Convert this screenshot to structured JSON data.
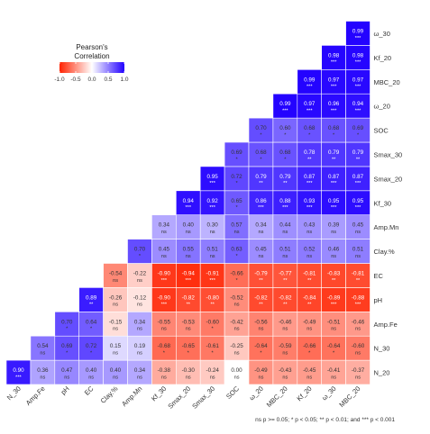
{
  "chart_data": {
    "type": "heatmap",
    "subtype": "lower-triangular correlation matrix",
    "variables": [
      "N_30",
      "Amp.Fe",
      "pH",
      "EC",
      "Clay.%",
      "Amp.Mn",
      "Kf_30",
      "Smax_20",
      "Smax_30",
      "SOC",
      "ω_20",
      "MBC_20",
      "Kf_20",
      "ω_30"
    ],
    "x_labels": [
      "N_30",
      "Amp.Fe",
      "pH",
      "EC",
      "Clay.%",
      "Amp.Mn",
      "Kf_30",
      "Smax_20",
      "Smax_30",
      "SOC",
      "ω_20",
      "MBC_20",
      "Kf_20",
      "ω_30",
      "MBC_20"
    ],
    "y_labels": [
      "N_20",
      "N_30",
      "Amp.Fe",
      "pH",
      "EC",
      "Clay.%",
      "Amp.Mn",
      "Kf_30",
      "Smax_20",
      "Smax_30",
      "SOC",
      "ω_20",
      "MBC_20",
      "Kf_20",
      "ω_30"
    ],
    "rows": [
      {
        "y": "N_20",
        "values": [
          {
            "r": 0.9,
            "sig": "***"
          },
          {
            "r": 0.36,
            "sig": "ns"
          },
          {
            "r": 0.47,
            "sig": "ns"
          },
          {
            "r": 0.4,
            "sig": "ns"
          },
          {
            "r": 0.4,
            "sig": "ns"
          },
          {
            "r": 0.34,
            "sig": "ns"
          },
          {
            "r": -0.38,
            "sig": "ns"
          },
          {
            "r": -0.3,
            "sig": "ns"
          },
          {
            "r": -0.24,
            "sig": "ns"
          },
          {
            "r": 0.0,
            "sig": "ns"
          },
          {
            "r": -0.49,
            "sig": "ns"
          },
          {
            "r": -0.43,
            "sig": "ns"
          },
          {
            "r": -0.45,
            "sig": "ns"
          },
          {
            "r": -0.41,
            "sig": "ns"
          },
          {
            "r": -0.37,
            "sig": "ns"
          }
        ]
      },
      {
        "y": "N_30",
        "values": [
          {
            "r": 0.54,
            "sig": "ns"
          },
          {
            "r": 0.69,
            "sig": "*"
          },
          {
            "r": 0.72,
            "sig": "*"
          },
          {
            "r": 0.15,
            "sig": "ns"
          },
          {
            "r": 0.19,
            "sig": "ns"
          },
          {
            "r": -0.68,
            "sig": "*"
          },
          {
            "r": -0.65,
            "sig": "*"
          },
          {
            "r": -0.61,
            "sig": "*"
          },
          {
            "r": -0.25,
            "sig": "ns"
          },
          {
            "r": -0.64,
            "sig": "*"
          },
          {
            "r": -0.59,
            "sig": "ns"
          },
          {
            "r": -0.66,
            "sig": "*"
          },
          {
            "r": -0.64,
            "sig": "*"
          },
          {
            "r": -0.6,
            "sig": "ns"
          }
        ]
      },
      {
        "y": "Amp.Fe",
        "values": [
          {
            "r": 0.7,
            "sig": "*"
          },
          {
            "r": 0.64,
            "sig": "*"
          },
          {
            "r": -0.15,
            "sig": "ns"
          },
          {
            "r": 0.34,
            "sig": "ns"
          },
          {
            "r": -0.55,
            "sig": "ns"
          },
          {
            "r": -0.53,
            "sig": "ns"
          },
          {
            "r": -0.6,
            "sig": "*"
          },
          {
            "r": -0.42,
            "sig": "ns"
          },
          {
            "r": -0.56,
            "sig": "ns"
          },
          {
            "r": -0.46,
            "sig": "ns"
          },
          {
            "r": -0.49,
            "sig": "ns"
          },
          {
            "r": -0.51,
            "sig": "ns"
          },
          {
            "r": -0.46,
            "sig": "ns"
          }
        ]
      },
      {
        "y": "pH",
        "values": [
          {
            "r": 0.89,
            "sig": "**"
          },
          {
            "r": -0.26,
            "sig": "ns"
          },
          {
            "r": -0.12,
            "sig": "ns"
          },
          {
            "r": -0.9,
            "sig": "***"
          },
          {
            "r": -0.82,
            "sig": "**"
          },
          {
            "r": -0.8,
            "sig": "**"
          },
          {
            "r": -0.52,
            "sig": "ns"
          },
          {
            "r": -0.82,
            "sig": "**"
          },
          {
            "r": -0.82,
            "sig": "**"
          },
          {
            "r": -0.84,
            "sig": "**"
          },
          {
            "r": -0.89,
            "sig": "***"
          },
          {
            "r": -0.88,
            "sig": "***"
          }
        ]
      },
      {
        "y": "EC",
        "values": [
          {
            "r": -0.54,
            "sig": "ns"
          },
          {
            "r": -0.22,
            "sig": "ns"
          },
          {
            "r": -0.9,
            "sig": "***"
          },
          {
            "r": -0.94,
            "sig": "***"
          },
          {
            "r": -0.91,
            "sig": "***"
          },
          {
            "r": -0.66,
            "sig": "*"
          },
          {
            "r": -0.79,
            "sig": "**"
          },
          {
            "r": -0.77,
            "sig": "**"
          },
          {
            "r": -0.81,
            "sig": "**"
          },
          {
            "r": -0.83,
            "sig": "**"
          },
          {
            "r": -0.81,
            "sig": "**"
          }
        ]
      },
      {
        "y": "Clay.%",
        "values": [
          {
            "r": 0.7,
            "sig": "*"
          },
          {
            "r": 0.45,
            "sig": "ns"
          },
          {
            "r": 0.55,
            "sig": "ns"
          },
          {
            "r": 0.51,
            "sig": "ns"
          },
          {
            "r": 0.63,
            "sig": "*"
          },
          {
            "r": 0.45,
            "sig": "ns"
          },
          {
            "r": 0.51,
            "sig": "ns"
          },
          {
            "r": 0.52,
            "sig": "ns"
          },
          {
            "r": 0.46,
            "sig": "ns"
          },
          {
            "r": 0.51,
            "sig": "ns"
          }
        ]
      },
      {
        "y": "Amp.Mn",
        "values": [
          {
            "r": 0.34,
            "sig": "ns"
          },
          {
            "r": 0.4,
            "sig": "ns"
          },
          {
            "r": 0.3,
            "sig": "ns"
          },
          {
            "r": 0.57,
            "sig": "ns"
          },
          {
            "r": 0.34,
            "sig": "ns"
          },
          {
            "r": 0.44,
            "sig": "ns"
          },
          {
            "r": 0.43,
            "sig": "ns"
          },
          {
            "r": 0.39,
            "sig": "ns"
          },
          {
            "r": 0.45,
            "sig": "ns"
          }
        ]
      },
      {
        "y": "Kf_30",
        "values": [
          {
            "r": 0.94,
            "sig": "***"
          },
          {
            "r": 0.92,
            "sig": "***"
          },
          {
            "r": 0.65,
            "sig": "*"
          },
          {
            "r": 0.86,
            "sig": "***"
          },
          {
            "r": 0.88,
            "sig": "***"
          },
          {
            "r": 0.93,
            "sig": "***"
          },
          {
            "r": 0.95,
            "sig": "***"
          },
          {
            "r": 0.95,
            "sig": "***"
          }
        ]
      },
      {
        "y": "Smax_20",
        "values": [
          {
            "r": 0.95,
            "sig": "***"
          },
          {
            "r": 0.72,
            "sig": "*"
          },
          {
            "r": 0.79,
            "sig": "**"
          },
          {
            "r": 0.79,
            "sig": "**"
          },
          {
            "r": 0.87,
            "sig": "***"
          },
          {
            "r": 0.87,
            "sig": "***"
          },
          {
            "r": 0.87,
            "sig": "***"
          }
        ]
      },
      {
        "y": "Smax_30",
        "values": [
          {
            "r": 0.69,
            "sig": "*"
          },
          {
            "r": 0.68,
            "sig": "*"
          },
          {
            "r": 0.68,
            "sig": "*"
          },
          {
            "r": 0.78,
            "sig": "**"
          },
          {
            "r": 0.79,
            "sig": "**"
          },
          {
            "r": 0.79,
            "sig": "**"
          }
        ]
      },
      {
        "y": "SOC",
        "values": [
          {
            "r": 0.7,
            "sig": "*"
          },
          {
            "r": 0.6,
            "sig": "*"
          },
          {
            "r": 0.68,
            "sig": "*"
          },
          {
            "r": 0.68,
            "sig": "*"
          },
          {
            "r": 0.69,
            "sig": "*"
          }
        ]
      },
      {
        "y": "ω_20",
        "values": [
          {
            "r": 0.99,
            "sig": "***"
          },
          {
            "r": 0.97,
            "sig": "***"
          },
          {
            "r": 0.96,
            "sig": "***"
          },
          {
            "r": 0.94,
            "sig": "***"
          }
        ]
      },
      {
        "y": "MBC_20",
        "values": [
          {
            "r": 0.99,
            "sig": "***"
          },
          {
            "r": 0.97,
            "sig": "***"
          },
          {
            "r": 0.97,
            "sig": "***"
          }
        ]
      },
      {
        "y": "Kf_20",
        "values": [
          {
            "r": 0.98,
            "sig": "***"
          },
          {
            "r": 0.98,
            "sig": "***"
          }
        ]
      },
      {
        "y": "ω_30",
        "values": [
          {
            "r": 0.99,
            "sig": "***"
          }
        ]
      }
    ],
    "legend": {
      "title": "Pearson's Correlation",
      "ticks": [
        "-1.0",
        "-0.5",
        "0.0",
        "0.5",
        "1.0"
      ],
      "placement": "top-left",
      "colors": {
        "negative": "#ff2200",
        "zero": "#ffffff",
        "positive": "#2200ff"
      }
    },
    "footnote": "ns p >= 0.05; * p < 0.05; ** p < 0.01; and *** p < 0.001",
    "color_range": [
      -1,
      1
    ]
  }
}
